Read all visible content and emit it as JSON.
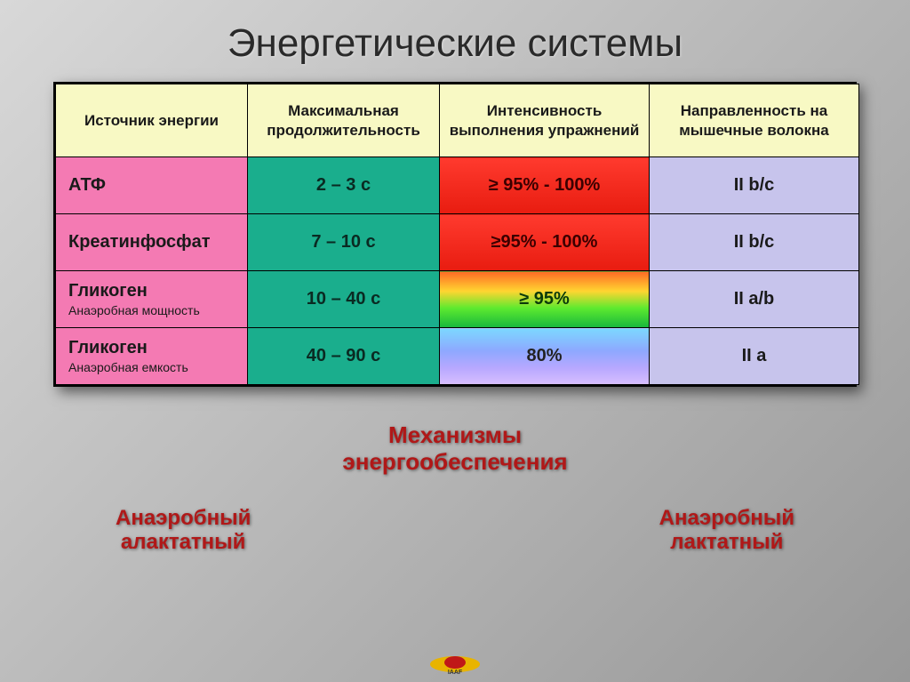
{
  "title": "Энергетические системы",
  "table": {
    "col_widths": [
      "216px",
      "216px",
      "236px",
      "236px"
    ],
    "header_bg": "#f8f9c4",
    "headers": [
      "Источник энергии",
      "Максимальная продолжительность",
      "Интенсивность выполнения упражнений",
      "Направленность на мышечные волокна"
    ],
    "col1_bg": "#f47ab3",
    "col2_bg": "#1aae8d",
    "col4_bg": "#c7c4ec",
    "rows": [
      {
        "source_main": "АТФ",
        "source_sub": "",
        "duration": "2 – 3 с",
        "intensity": "≥ 95% - 100%",
        "intensity_class": "intensity-red",
        "fibers": "II b/c"
      },
      {
        "source_main": "Креатинфосфат",
        "source_sub": "",
        "duration": "7 – 10 с",
        "intensity": "≥95% - 100%",
        "intensity_class": "intensity-red",
        "fibers": "II b/c"
      },
      {
        "source_main": "Гликоген",
        "source_sub": "Анаэробная мощность",
        "duration": "10 – 40 с",
        "intensity": "≥ 95%",
        "intensity_class": "intensity-rainbow",
        "fibers": "II a/b"
      },
      {
        "source_main": "Гликоген",
        "source_sub": "Анаэробная емкость",
        "duration": "40 – 90 с",
        "intensity": "80%",
        "intensity_class": "intensity-bluefade",
        "fibers": "II a"
      }
    ]
  },
  "footer": {
    "title_line1": "Механизмы",
    "title_line2": "энергообеспечения",
    "left_line1": "Анаэробный",
    "left_line2": "алактатный",
    "right_line1": "Анаэробный",
    "right_line2": "лактатный"
  },
  "logo": {
    "wing_color": "#e8b400",
    "body_color": "#c01818",
    "text": "IAAF"
  }
}
